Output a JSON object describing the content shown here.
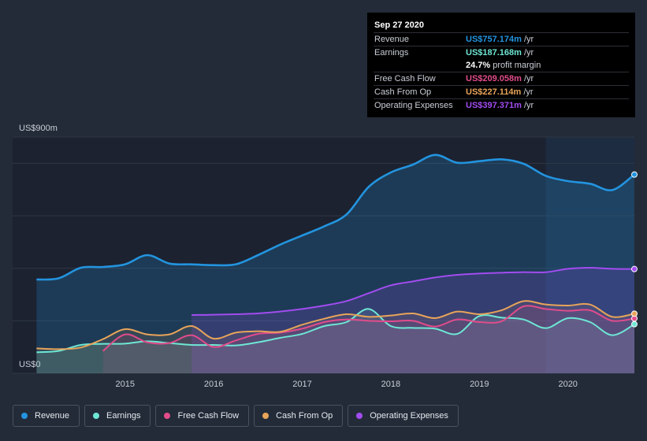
{
  "tooltip": {
    "date": "Sep 27 2020",
    "rows": [
      {
        "name": "Revenue",
        "value": "US$757.174m",
        "unit": "/yr",
        "color": "#2394df"
      },
      {
        "name": "Earnings",
        "value": "US$187.168m",
        "unit": "/yr",
        "color": "#6ee7d4"
      },
      {
        "name": "",
        "value": "24.7%",
        "unit": "profit margin",
        "color": "#ffffff"
      },
      {
        "name": "Free Cash Flow",
        "value": "US$209.058m",
        "unit": "/yr",
        "color": "#e24c8b"
      },
      {
        "name": "Cash From Op",
        "value": "US$227.114m",
        "unit": "/yr",
        "color": "#e8a45a"
      },
      {
        "name": "Operating Expenses",
        "value": "US$397.371m",
        "unit": "/yr",
        "color": "#a24cf0"
      }
    ]
  },
  "legend": [
    {
      "label": "Revenue",
      "color": "#2394df"
    },
    {
      "label": "Earnings",
      "color": "#6ee7d4"
    },
    {
      "label": "Free Cash Flow",
      "color": "#e24c8b"
    },
    {
      "label": "Cash From Op",
      "color": "#e8a45a"
    },
    {
      "label": "Operating Expenses",
      "color": "#a24cf0"
    }
  ],
  "chart_data": {
    "type": "area",
    "x_ticks": [
      "2015",
      "2016",
      "2017",
      "2018",
      "2019",
      "2020"
    ],
    "x_tick_values": [
      2015,
      2016,
      2017,
      2018,
      2019,
      2020
    ],
    "y_labels": {
      "top": "US$900m",
      "bottom": "US$0"
    },
    "ylim": [
      0,
      900
    ],
    "xlim": [
      2013.73,
      2020.75
    ],
    "forecast_shade_from": 2019.75,
    "series": [
      {
        "name": "Revenue",
        "color": "#2394df",
        "points": [
          [
            2014.0,
            357
          ],
          [
            2014.25,
            362
          ],
          [
            2014.5,
            402
          ],
          [
            2014.75,
            405
          ],
          [
            2015.0,
            415
          ],
          [
            2015.25,
            450
          ],
          [
            2015.5,
            418
          ],
          [
            2015.75,
            415
          ],
          [
            2016.0,
            412
          ],
          [
            2016.25,
            415
          ],
          [
            2016.5,
            450
          ],
          [
            2016.75,
            490
          ],
          [
            2017.0,
            525
          ],
          [
            2017.25,
            560
          ],
          [
            2017.5,
            605
          ],
          [
            2017.75,
            710
          ],
          [
            2018.0,
            765
          ],
          [
            2018.25,
            795
          ],
          [
            2018.5,
            832
          ],
          [
            2018.75,
            802
          ],
          [
            2019.0,
            808
          ],
          [
            2019.25,
            815
          ],
          [
            2019.5,
            798
          ],
          [
            2019.75,
            752
          ],
          [
            2020.0,
            732
          ],
          [
            2020.25,
            722
          ],
          [
            2020.5,
            698
          ],
          [
            2020.75,
            757
          ]
        ]
      },
      {
        "name": "Earnings",
        "color": "#6ee7d4",
        "points": [
          [
            2014.0,
            80
          ],
          [
            2014.25,
            85
          ],
          [
            2014.5,
            108
          ],
          [
            2014.75,
            112
          ],
          [
            2015.0,
            113
          ],
          [
            2015.25,
            122
          ],
          [
            2015.5,
            115
          ],
          [
            2015.75,
            108
          ],
          [
            2016.0,
            108
          ],
          [
            2016.25,
            106
          ],
          [
            2016.5,
            118
          ],
          [
            2016.75,
            135
          ],
          [
            2017.0,
            150
          ],
          [
            2017.25,
            180
          ],
          [
            2017.5,
            195
          ],
          [
            2017.75,
            245
          ],
          [
            2018.0,
            180
          ],
          [
            2018.25,
            173
          ],
          [
            2018.5,
            170
          ],
          [
            2018.75,
            150
          ],
          [
            2019.0,
            218
          ],
          [
            2019.25,
            212
          ],
          [
            2019.5,
            205
          ],
          [
            2019.75,
            172
          ],
          [
            2020.0,
            210
          ],
          [
            2020.25,
            195
          ],
          [
            2020.5,
            145
          ],
          [
            2020.75,
            187
          ]
        ]
      },
      {
        "name": "Free Cash Flow",
        "color": "#e24c8b",
        "points": [
          [
            2014.75,
            85
          ],
          [
            2015.0,
            148
          ],
          [
            2015.25,
            118
          ],
          [
            2015.5,
            115
          ],
          [
            2015.75,
            145
          ],
          [
            2016.0,
            100
          ],
          [
            2016.25,
            125
          ],
          [
            2016.5,
            150
          ],
          [
            2016.75,
            155
          ],
          [
            2017.0,
            170
          ],
          [
            2017.25,
            195
          ],
          [
            2017.5,
            205
          ],
          [
            2017.75,
            200
          ],
          [
            2018.0,
            198
          ],
          [
            2018.25,
            200
          ],
          [
            2018.5,
            178
          ],
          [
            2018.75,
            205
          ],
          [
            2019.0,
            195
          ],
          [
            2019.25,
            198
          ],
          [
            2019.5,
            255
          ],
          [
            2019.75,
            245
          ],
          [
            2020.0,
            238
          ],
          [
            2020.25,
            240
          ],
          [
            2020.5,
            200
          ],
          [
            2020.75,
            209
          ]
        ]
      },
      {
        "name": "Cash From Op",
        "color": "#e8a45a",
        "points": [
          [
            2014.0,
            95
          ],
          [
            2014.25,
            92
          ],
          [
            2014.5,
            98
          ],
          [
            2014.75,
            130
          ],
          [
            2015.0,
            168
          ],
          [
            2015.25,
            148
          ],
          [
            2015.5,
            148
          ],
          [
            2015.75,
            180
          ],
          [
            2016.0,
            132
          ],
          [
            2016.25,
            155
          ],
          [
            2016.5,
            160
          ],
          [
            2016.75,
            158
          ],
          [
            2017.0,
            185
          ],
          [
            2017.25,
            208
          ],
          [
            2017.5,
            225
          ],
          [
            2017.75,
            215
          ],
          [
            2018.0,
            220
          ],
          [
            2018.25,
            228
          ],
          [
            2018.5,
            210
          ],
          [
            2018.75,
            235
          ],
          [
            2019.0,
            225
          ],
          [
            2019.25,
            240
          ],
          [
            2019.5,
            275
          ],
          [
            2019.75,
            262
          ],
          [
            2020.0,
            258
          ],
          [
            2020.25,
            262
          ],
          [
            2020.5,
            215
          ],
          [
            2020.75,
            227
          ]
        ]
      },
      {
        "name": "Operating Expenses",
        "color": "#a24cf0",
        "points": [
          [
            2015.75,
            222
          ],
          [
            2016.0,
            223
          ],
          [
            2016.25,
            225
          ],
          [
            2016.5,
            228
          ],
          [
            2016.75,
            235
          ],
          [
            2017.0,
            245
          ],
          [
            2017.25,
            258
          ],
          [
            2017.5,
            275
          ],
          [
            2017.75,
            305
          ],
          [
            2018.0,
            335
          ],
          [
            2018.25,
            350
          ],
          [
            2018.5,
            365
          ],
          [
            2018.75,
            375
          ],
          [
            2019.0,
            380
          ],
          [
            2019.25,
            383
          ],
          [
            2019.5,
            385
          ],
          [
            2019.75,
            385
          ],
          [
            2020.0,
            398
          ],
          [
            2020.25,
            402
          ],
          [
            2020.5,
            398
          ],
          [
            2020.75,
            397
          ]
        ]
      }
    ]
  }
}
